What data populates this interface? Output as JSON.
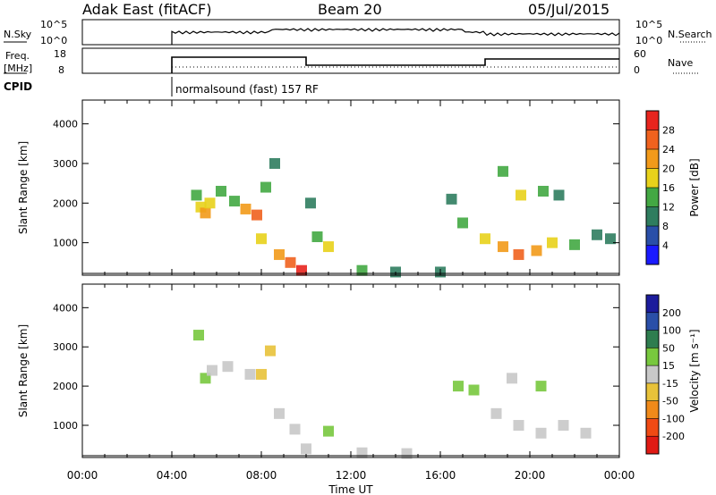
{
  "header": {
    "station": "Adak East (fitACF)",
    "beam": "Beam 20",
    "date": "05/Jul/2015"
  },
  "sky_panel": {
    "left_label": "N.Sky",
    "right_label": "N.Search",
    "left_ticks": [
      "10^5",
      "10^0"
    ],
    "right_ticks": [
      "10^5",
      "10^0"
    ]
  },
  "freq_panel": {
    "left_label_1": "Freq.",
    "left_label_2": "[MHz]",
    "right_label": "Nave",
    "left_ticks": [
      "18",
      "8"
    ],
    "right_ticks": [
      "60",
      "0"
    ]
  },
  "cpid": {
    "label": "CPID",
    "program": "normalsound (fast) 157 RF"
  },
  "time_axis": {
    "label": "Time UT",
    "ticks": [
      "00:00",
      "04:00",
      "08:00",
      "12:00",
      "16:00",
      "20:00",
      "00:00"
    ]
  },
  "power_colorbar": {
    "label": "Power [dB]",
    "ticks": [
      "4",
      "8",
      "12",
      "16",
      "20",
      "24",
      "28"
    ],
    "colors": [
      "#1a1aff",
      "#2a4fa8",
      "#2f7d5f",
      "#43a843",
      "#e8d21b",
      "#f29a1a",
      "#f0621e",
      "#e8251e"
    ]
  },
  "velocity_colorbar": {
    "label": "Velocity [m s⁻¹]",
    "ticks": [
      "200",
      "100",
      "50",
      "15",
      "-15",
      "-50",
      "-100",
      "-200"
    ],
    "colors": [
      "#1c1c9c",
      "#2a4fa8",
      "#2e7d4f",
      "#78c83e",
      "#c8c8c8",
      "#e8c23a",
      "#f08a1a",
      "#f04a14",
      "#e01a14"
    ]
  },
  "chart_data": [
    {
      "type": "heatmap",
      "title": "Power",
      "ylabel": "Slant Range [km]",
      "xlabel": "",
      "xlim_hours": [
        0,
        24
      ],
      "ylim": [
        180,
        4600
      ],
      "yticks": [
        1000,
        2000,
        3000,
        4000
      ],
      "clim": [
        0,
        30
      ],
      "cells": [
        {
          "t": 5.1,
          "r": 2200,
          "v": 14
        },
        {
          "t": 5.3,
          "r": 1900,
          "v": 18
        },
        {
          "t": 5.5,
          "r": 1750,
          "v": 22
        },
        {
          "t": 5.7,
          "r": 2000,
          "v": 16
        },
        {
          "t": 6.2,
          "r": 2300,
          "v": 12
        },
        {
          "t": 6.8,
          "r": 2050,
          "v": 14
        },
        {
          "t": 7.3,
          "r": 1850,
          "v": 20
        },
        {
          "t": 7.8,
          "r": 1700,
          "v": 24
        },
        {
          "t": 8.2,
          "r": 2400,
          "v": 12
        },
        {
          "t": 8.6,
          "r": 3000,
          "v": 10
        },
        {
          "t": 8.0,
          "r": 1100,
          "v": 16
        },
        {
          "t": 8.8,
          "r": 700,
          "v": 20
        },
        {
          "t": 9.3,
          "r": 500,
          "v": 24
        },
        {
          "t": 9.8,
          "r": 300,
          "v": 28
        },
        {
          "t": 10.5,
          "r": 1150,
          "v": 14
        },
        {
          "t": 11.0,
          "r": 900,
          "v": 18
        },
        {
          "t": 10.2,
          "r": 2000,
          "v": 10
        },
        {
          "t": 12.5,
          "r": 300,
          "v": 14
        },
        {
          "t": 14.0,
          "r": 260,
          "v": 10
        },
        {
          "t": 16.0,
          "r": 260,
          "v": 8
        },
        {
          "t": 16.5,
          "r": 2100,
          "v": 10
        },
        {
          "t": 17.0,
          "r": 1500,
          "v": 12
        },
        {
          "t": 18.0,
          "r": 1100,
          "v": 16
        },
        {
          "t": 18.8,
          "r": 900,
          "v": 20
        },
        {
          "t": 19.5,
          "r": 700,
          "v": 24
        },
        {
          "t": 20.3,
          "r": 800,
          "v": 20
        },
        {
          "t": 21.0,
          "r": 1000,
          "v": 16
        },
        {
          "t": 22.0,
          "r": 950,
          "v": 12
        },
        {
          "t": 23.0,
          "r": 1200,
          "v": 10
        },
        {
          "t": 23.6,
          "r": 1100,
          "v": 8
        },
        {
          "t": 18.8,
          "r": 2800,
          "v": 12
        },
        {
          "t": 19.6,
          "r": 2200,
          "v": 16
        },
        {
          "t": 20.6,
          "r": 2300,
          "v": 12
        },
        {
          "t": 21.3,
          "r": 2200,
          "v": 10
        }
      ]
    },
    {
      "type": "heatmap",
      "title": "Velocity",
      "ylabel": "Slant Range [km]",
      "xlabel": "Time UT",
      "xlim_hours": [
        0,
        24
      ],
      "ylim": [
        180,
        4600
      ],
      "yticks": [
        1000,
        2000,
        3000,
        4000
      ],
      "clim": [
        -250,
        250
      ],
      "cells": [
        {
          "t": 5.2,
          "r": 3300,
          "v": 40
        },
        {
          "t": 5.5,
          "r": 2200,
          "v": 30
        },
        {
          "t": 5.8,
          "r": 2400,
          "v": 0
        },
        {
          "t": 6.5,
          "r": 2500,
          "v": -10
        },
        {
          "t": 7.5,
          "r": 2300,
          "v": 5
        },
        {
          "t": 8.0,
          "r": 2300,
          "v": -30
        },
        {
          "t": 8.4,
          "r": 2900,
          "v": -30
        },
        {
          "t": 8.8,
          "r": 1300,
          "v": 0
        },
        {
          "t": 9.5,
          "r": 900,
          "v": 5
        },
        {
          "t": 10.0,
          "r": 400,
          "v": 10
        },
        {
          "t": 11.0,
          "r": 850,
          "v": 60
        },
        {
          "t": 12.5,
          "r": 300,
          "v": 20
        },
        {
          "t": 14.5,
          "r": 280,
          "v": 10
        },
        {
          "t": 16.8,
          "r": 2000,
          "v": 30
        },
        {
          "t": 17.5,
          "r": 1900,
          "v": 40
        },
        {
          "t": 18.5,
          "r": 1300,
          "v": -5
        },
        {
          "t": 19.5,
          "r": 1000,
          "v": 0
        },
        {
          "t": 20.5,
          "r": 800,
          "v": 5
        },
        {
          "t": 21.5,
          "r": 1000,
          "v": -5
        },
        {
          "t": 22.5,
          "r": 800,
          "v": 15
        },
        {
          "t": 19.2,
          "r": 2200,
          "v": 0
        },
        {
          "t": 20.5,
          "r": 2000,
          "v": 30
        }
      ]
    }
  ]
}
